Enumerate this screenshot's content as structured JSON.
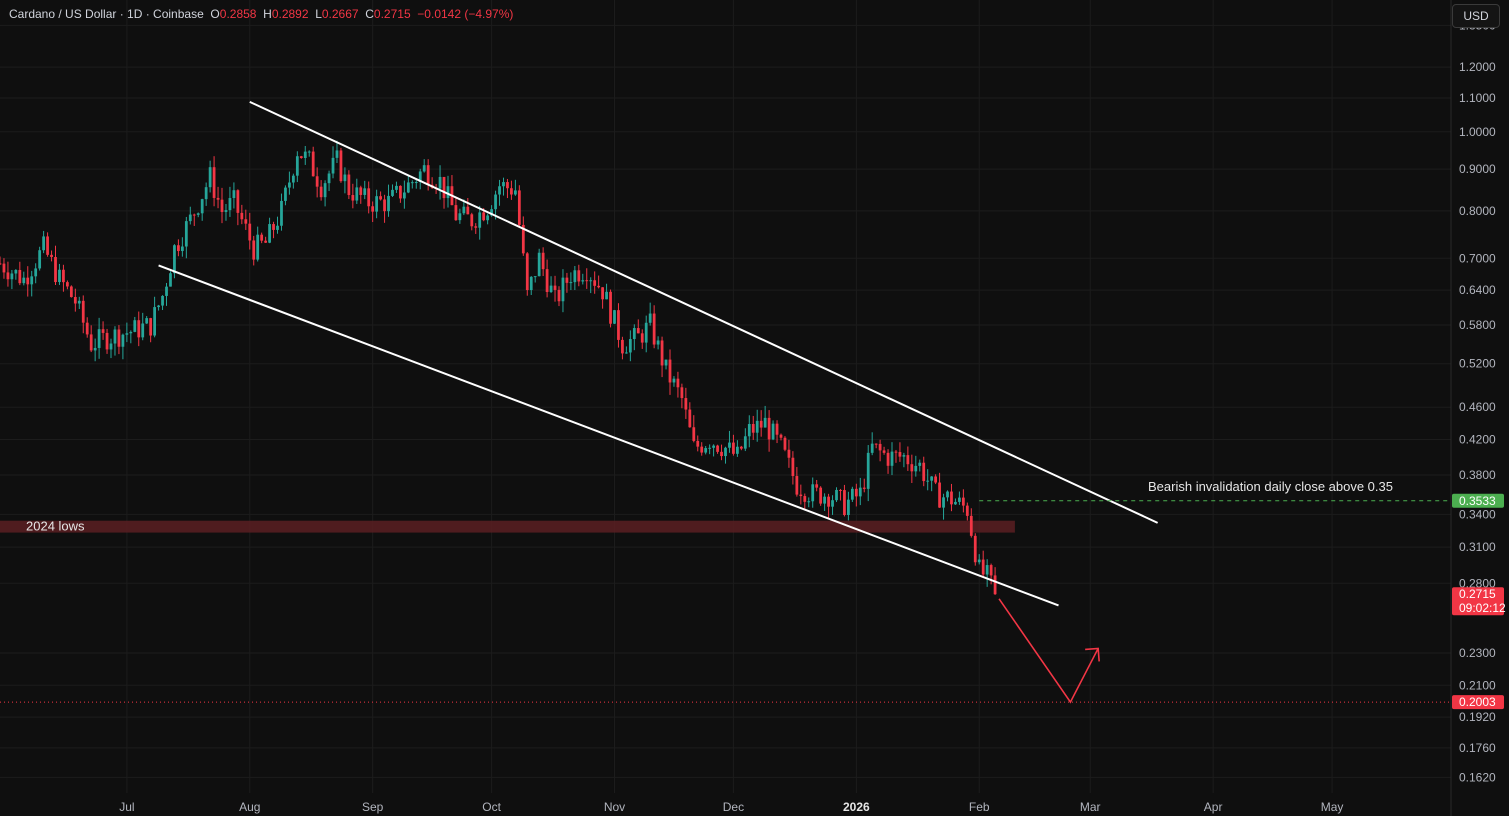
{
  "header": {
    "symbol": "Cardano / US Dollar · 1D · Coinbase",
    "open_label": "O",
    "open_value": "0.2858",
    "high_label": "H",
    "high_value": "0.2892",
    "low_label": "L",
    "low_value": "0.2667",
    "close_label": "C",
    "close_value": "0.2715",
    "change": "−0.0142 (−4.97%)"
  },
  "currency_button": "USD",
  "colors": {
    "up": "#26a69a",
    "down": "#f23645",
    "background": "#0f0f0f",
    "grid": "#1c1c1c",
    "text": "#d1d4dc",
    "zone": "#5a1f22",
    "green_level": "#4caf50",
    "red_level": "#f23645"
  },
  "chart_data": {
    "type": "candlestick",
    "y_scale": "log",
    "ylim": [
      0.155,
      1.45
    ],
    "xlim": [
      "2025-05-30",
      "2026-05-31"
    ],
    "y_ticks": [
      "1.3500",
      "1.2000",
      "1.1000",
      "1.0000",
      "0.9000",
      "0.8000",
      "0.7000",
      "0.6400",
      "0.5800",
      "0.5200",
      "0.4600",
      "0.4200",
      "0.3800",
      "0.3400",
      "0.3100",
      "0.2800",
      "0.2300",
      "0.2100",
      "0.1920",
      "0.1760",
      "0.1620"
    ],
    "x_ticks": [
      {
        "label": "Jul",
        "date": "2025-07-01",
        "bold": false
      },
      {
        "label": "Aug",
        "date": "2025-08-01",
        "bold": false
      },
      {
        "label": "Sep",
        "date": "2025-09-01",
        "bold": false
      },
      {
        "label": "Oct",
        "date": "2025-10-01",
        "bold": false
      },
      {
        "label": "Nov",
        "date": "2025-11-01",
        "bold": false
      },
      {
        "label": "Dec",
        "date": "2025-12-01",
        "bold": false
      },
      {
        "label": "2026",
        "date": "2026-01-01",
        "bold": true
      },
      {
        "label": "Feb",
        "date": "2026-02-01",
        "bold": false
      },
      {
        "label": "Mar",
        "date": "2026-03-01",
        "bold": false
      },
      {
        "label": "Apr",
        "date": "2026-04-01",
        "bold": false
      },
      {
        "label": "May",
        "date": "2026-05-01",
        "bold": false
      }
    ],
    "price_path": [
      [
        "2025-05-30",
        0.69
      ],
      [
        "2025-06-05",
        0.66
      ],
      [
        "2025-06-10",
        0.72
      ],
      [
        "2025-06-14",
        0.66
      ],
      [
        "2025-06-18",
        0.62
      ],
      [
        "2025-06-22",
        0.55
      ],
      [
        "2025-06-26",
        0.56
      ],
      [
        "2025-07-02",
        0.57
      ],
      [
        "2025-07-07",
        0.58
      ],
      [
        "2025-07-10",
        0.63
      ],
      [
        "2025-07-13",
        0.72
      ],
      [
        "2025-07-17",
        0.78
      ],
      [
        "2025-07-22",
        0.88
      ],
      [
        "2025-07-25",
        0.8
      ],
      [
        "2025-07-28",
        0.82
      ],
      [
        "2025-08-02",
        0.72
      ],
      [
        "2025-08-05",
        0.73
      ],
      [
        "2025-08-09",
        0.8
      ],
      [
        "2025-08-13",
        0.95
      ],
      [
        "2025-08-16",
        0.92
      ],
      [
        "2025-08-19",
        0.86
      ],
      [
        "2025-08-23",
        0.92
      ],
      [
        "2025-08-26",
        0.85
      ],
      [
        "2025-08-31",
        0.82
      ],
      [
        "2025-09-05",
        0.82
      ],
      [
        "2025-09-10",
        0.86
      ],
      [
        "2025-09-14",
        0.9
      ],
      [
        "2025-09-18",
        0.87
      ],
      [
        "2025-09-22",
        0.79
      ],
      [
        "2025-09-26",
        0.78
      ],
      [
        "2025-09-30",
        0.81
      ],
      [
        "2025-10-03",
        0.86
      ],
      [
        "2025-10-07",
        0.85
      ],
      [
        "2025-10-10",
        0.63
      ],
      [
        "2025-10-13",
        0.7
      ],
      [
        "2025-10-17",
        0.62
      ],
      [
        "2025-10-21",
        0.67
      ],
      [
        "2025-10-25",
        0.68
      ],
      [
        "2025-10-29",
        0.64
      ],
      [
        "2025-11-03",
        0.55
      ],
      [
        "2025-11-07",
        0.56
      ],
      [
        "2025-11-10",
        0.58
      ],
      [
        "2025-11-14",
        0.51
      ],
      [
        "2025-11-18",
        0.47
      ],
      [
        "2025-11-21",
        0.41
      ],
      [
        "2025-11-25",
        0.42
      ],
      [
        "2025-11-29",
        0.41
      ],
      [
        "2025-12-02",
        0.4
      ],
      [
        "2025-12-05",
        0.43
      ],
      [
        "2025-12-09",
        0.44
      ],
      [
        "2025-12-13",
        0.41
      ],
      [
        "2025-12-17",
        0.37
      ],
      [
        "2025-12-21",
        0.36
      ],
      [
        "2025-12-25",
        0.36
      ],
      [
        "2025-12-29",
        0.35
      ],
      [
        "2026-01-02",
        0.36
      ],
      [
        "2026-01-05",
        0.41
      ],
      [
        "2026-01-09",
        0.4
      ],
      [
        "2026-01-13",
        0.4
      ],
      [
        "2026-01-17",
        0.39
      ],
      [
        "2026-01-21",
        0.36
      ],
      [
        "2026-01-25",
        0.355
      ],
      [
        "2026-01-29",
        0.345
      ],
      [
        "2026-02-01",
        0.29
      ],
      [
        "2026-02-03",
        0.285
      ],
      [
        "2026-02-05",
        0.2715
      ]
    ],
    "channel_upper": [
      [
        "2025-08-01",
        1.088
      ],
      [
        "2026-03-18",
        0.332
      ]
    ],
    "channel_lower": [
      [
        "2025-07-09",
        0.686
      ],
      [
        "2026-02-21",
        0.263
      ]
    ],
    "zone": {
      "label": "2024 lows",
      "from": 0.323,
      "to": 0.334,
      "end_date": "2026-02-10"
    },
    "invalidation": {
      "value": 0.3533,
      "label": "0.3533",
      "start_date": "2026-02-01",
      "annotation": "Bearish invalidation daily close above 0.35"
    },
    "target": {
      "value": 0.2003,
      "label": "0.2003"
    },
    "current_price": {
      "value": 0.2715,
      "label": "0.2715",
      "timer": "09:02:12"
    },
    "projection": [
      [
        "2026-02-06",
        0.268
      ],
      [
        "2026-02-24",
        0.2003
      ],
      [
        "2026-03-03",
        0.233
      ]
    ],
    "projection_arrowhead": "up-right"
  }
}
